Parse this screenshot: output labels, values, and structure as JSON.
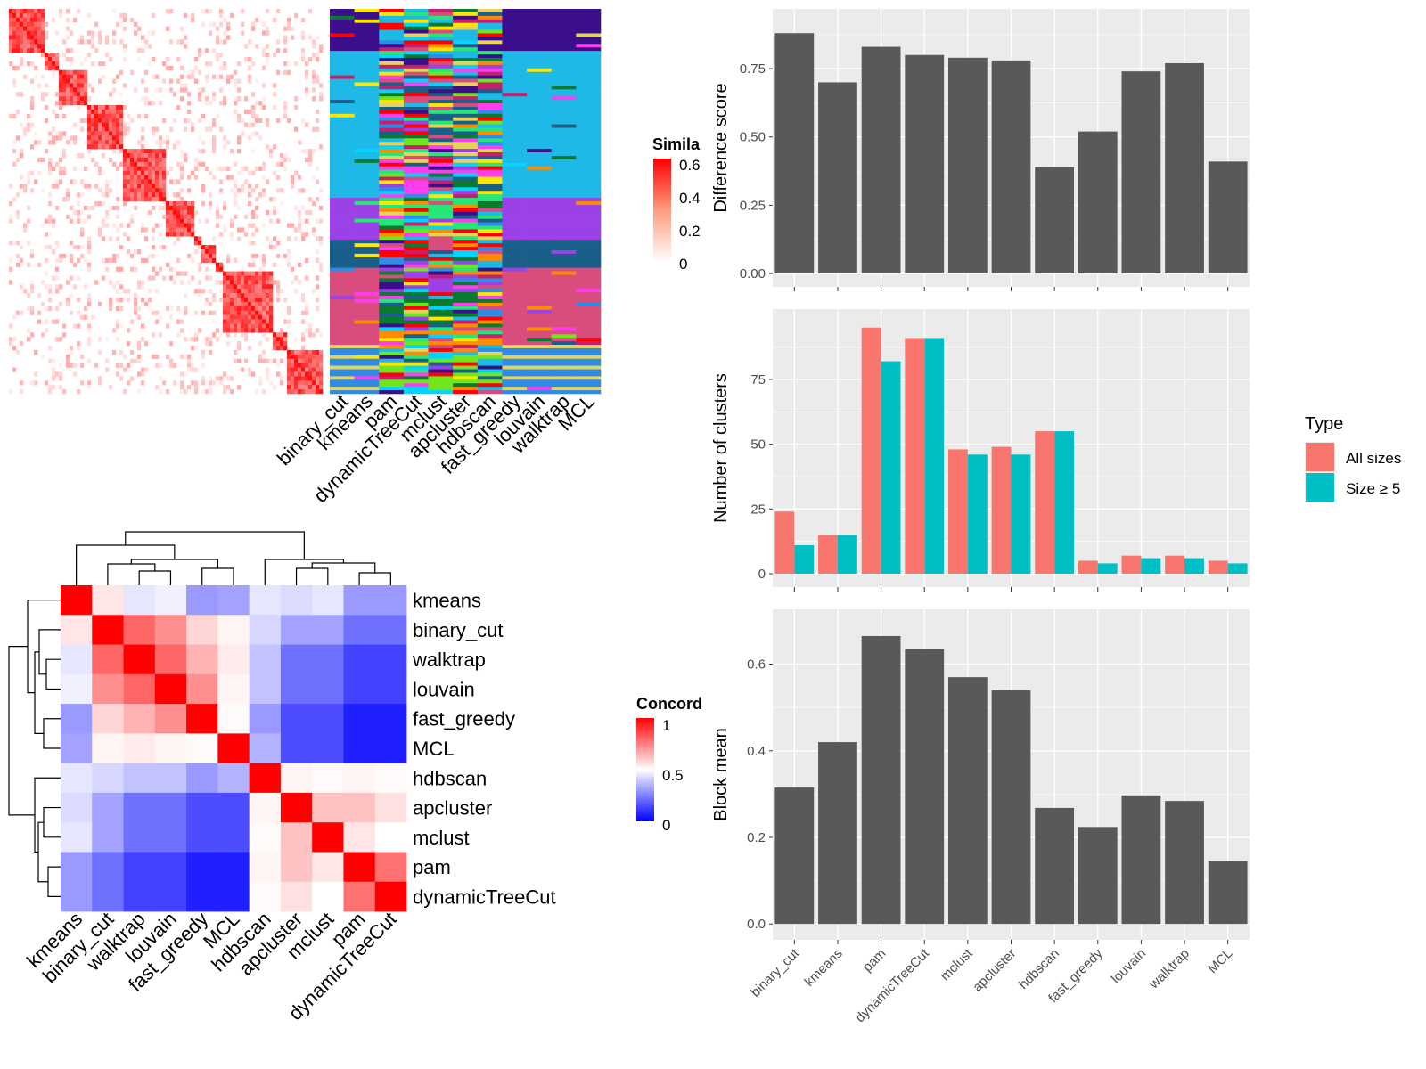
{
  "methods": [
    "binary_cut",
    "kmeans",
    "pam",
    "dynamicTreeCut",
    "mclust",
    "apcluster",
    "hdbscan",
    "fast_greedy",
    "louvain",
    "walktrap",
    "MCL"
  ],
  "similarity_legend": {
    "title": "Simila",
    "ticks": [
      "0.6",
      "0.4",
      "0.2",
      "0"
    ],
    "colors": [
      "#ff0000",
      "#ff9c80",
      "#ffffff"
    ]
  },
  "concordance_legend": {
    "title": "Concord",
    "ticks": [
      "1",
      "0.5",
      "0"
    ],
    "colors": [
      "#ff0000",
      "#ffffff",
      "#0000ff"
    ]
  },
  "concordance": {
    "order": [
      "kmeans",
      "binary_cut",
      "walktrap",
      "louvain",
      "fast_greedy",
      "MCL",
      "hdbscan",
      "apcluster",
      "mclust",
      "pam",
      "dynamicTreeCut"
    ],
    "matrix": [
      [
        1.0,
        0.55,
        0.45,
        0.47,
        0.3,
        0.32,
        0.45,
        0.43,
        0.45,
        0.3,
        0.3
      ],
      [
        0.55,
        1.0,
        0.8,
        0.72,
        0.58,
        0.52,
        0.42,
        0.32,
        0.32,
        0.22,
        0.22
      ],
      [
        0.45,
        0.8,
        1.0,
        0.8,
        0.65,
        0.54,
        0.38,
        0.22,
        0.22,
        0.13,
        0.13
      ],
      [
        0.47,
        0.72,
        0.8,
        1.0,
        0.72,
        0.52,
        0.38,
        0.22,
        0.22,
        0.13,
        0.13
      ],
      [
        0.3,
        0.58,
        0.65,
        0.72,
        1.0,
        0.51,
        0.3,
        0.15,
        0.15,
        0.06,
        0.06
      ],
      [
        0.32,
        0.52,
        0.54,
        0.52,
        0.51,
        1.0,
        0.35,
        0.15,
        0.15,
        0.06,
        0.06
      ],
      [
        0.45,
        0.42,
        0.38,
        0.38,
        0.3,
        0.35,
        1.0,
        0.52,
        0.51,
        0.52,
        0.51
      ],
      [
        0.43,
        0.32,
        0.22,
        0.22,
        0.15,
        0.15,
        0.52,
        1.0,
        0.62,
        0.62,
        0.56
      ],
      [
        0.45,
        0.32,
        0.22,
        0.22,
        0.15,
        0.15,
        0.51,
        0.62,
        1.0,
        0.55,
        0.5
      ],
      [
        0.3,
        0.22,
        0.13,
        0.13,
        0.06,
        0.06,
        0.52,
        0.62,
        0.55,
        1.0,
        0.78
      ],
      [
        0.3,
        0.22,
        0.13,
        0.13,
        0.06,
        0.06,
        0.51,
        0.56,
        0.5,
        0.78,
        1.0
      ]
    ]
  },
  "chart_data": [
    {
      "type": "bar",
      "categories": [
        "binary_cut",
        "kmeans",
        "pam",
        "dynamicTreeCut",
        "mclust",
        "apcluster",
        "hdbscan",
        "fast_greedy",
        "louvain",
        "walktrap",
        "MCL"
      ],
      "values": [
        0.88,
        0.7,
        0.83,
        0.8,
        0.79,
        0.78,
        0.39,
        0.52,
        0.74,
        0.77,
        0.41
      ],
      "ylabel": "Difference score",
      "yticks": [
        "0.00",
        "0.25",
        "0.50",
        "0.75"
      ],
      "ylim": [
        0,
        0.92
      ],
      "grid": true,
      "bar_color": "#595959"
    },
    {
      "type": "bar",
      "categories": [
        "binary_cut",
        "kmeans",
        "pam",
        "dynamicTreeCut",
        "mclust",
        "apcluster",
        "hdbscan",
        "fast_greedy",
        "louvain",
        "walktrap",
        "MCL"
      ],
      "series": [
        {
          "name": "All sizes",
          "color": "#F8766D",
          "values": [
            24,
            15,
            95,
            91,
            48,
            49,
            55,
            5,
            7,
            7,
            5
          ]
        },
        {
          "name": "Size ≥ 5",
          "color": "#00BFC4",
          "values": [
            11,
            15,
            82,
            91,
            46,
            46,
            55,
            4,
            6,
            6,
            4
          ]
        }
      ],
      "ylabel": "Number of clusters",
      "yticks": [
        "0",
        "25",
        "50",
        "75"
      ],
      "ylim": [
        0,
        97
      ],
      "legend": {
        "title": "Type",
        "placement": "right"
      },
      "grid": true
    },
    {
      "type": "bar",
      "categories": [
        "binary_cut",
        "kmeans",
        "pam",
        "dynamicTreeCut",
        "mclust",
        "apcluster",
        "hdbscan",
        "fast_greedy",
        "louvain",
        "walktrap",
        "MCL"
      ],
      "values": [
        0.315,
        0.42,
        0.665,
        0.635,
        0.57,
        0.54,
        0.268,
        0.224,
        0.297,
        0.284,
        0.145
      ],
      "ylabel": "Block mean",
      "yticks": [
        "0.0",
        "0.2",
        "0.4",
        "0.6"
      ],
      "ylim": [
        0,
        0.69
      ],
      "grid": true,
      "bar_color": "#595959"
    }
  ]
}
